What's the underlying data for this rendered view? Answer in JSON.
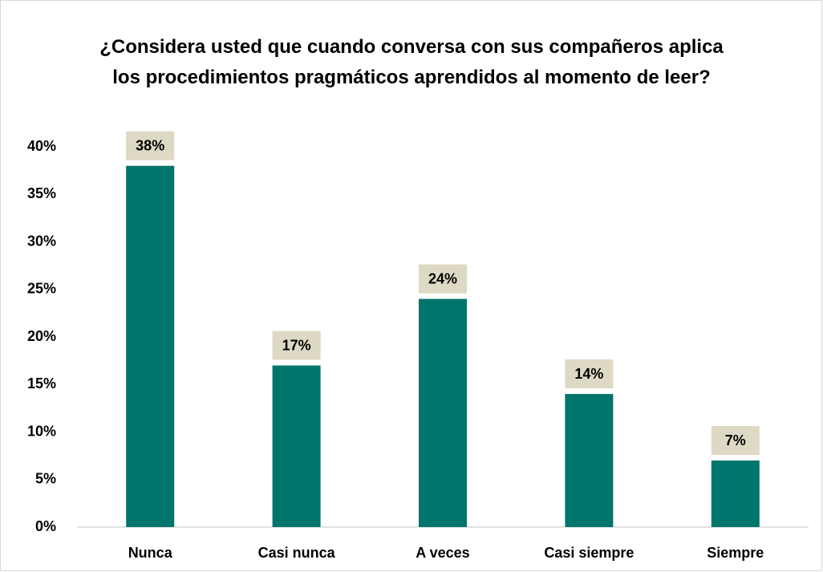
{
  "chart_data": {
    "type": "bar",
    "title": "¿Considera usted que cuando conversa con sus compañeros aplica los procedimientos pragmáticos aprendidos al momento de leer?",
    "categories": [
      "Nunca",
      "Casi nunca",
      "A veces",
      "Casi siempre",
      "Siempre"
    ],
    "values": [
      38,
      17,
      24,
      14,
      7
    ],
    "value_labels": [
      "38%",
      "17%",
      "24%",
      "14%",
      "7%"
    ],
    "color": "#00756b",
    "ylim": [
      0,
      40
    ],
    "yticks": [
      {
        "value": 0,
        "label": "0%"
      },
      {
        "value": 5,
        "label": "5%"
      },
      {
        "value": 10,
        "label": "10%"
      },
      {
        "value": 15,
        "label": "15%"
      },
      {
        "value": 20,
        "label": "20%"
      },
      {
        "value": 25,
        "label": "25%"
      },
      {
        "value": 30,
        "label": "30%"
      },
      {
        "value": 35,
        "label": "35%"
      },
      {
        "value": 40,
        "label": "40%"
      }
    ],
    "grid": false
  }
}
